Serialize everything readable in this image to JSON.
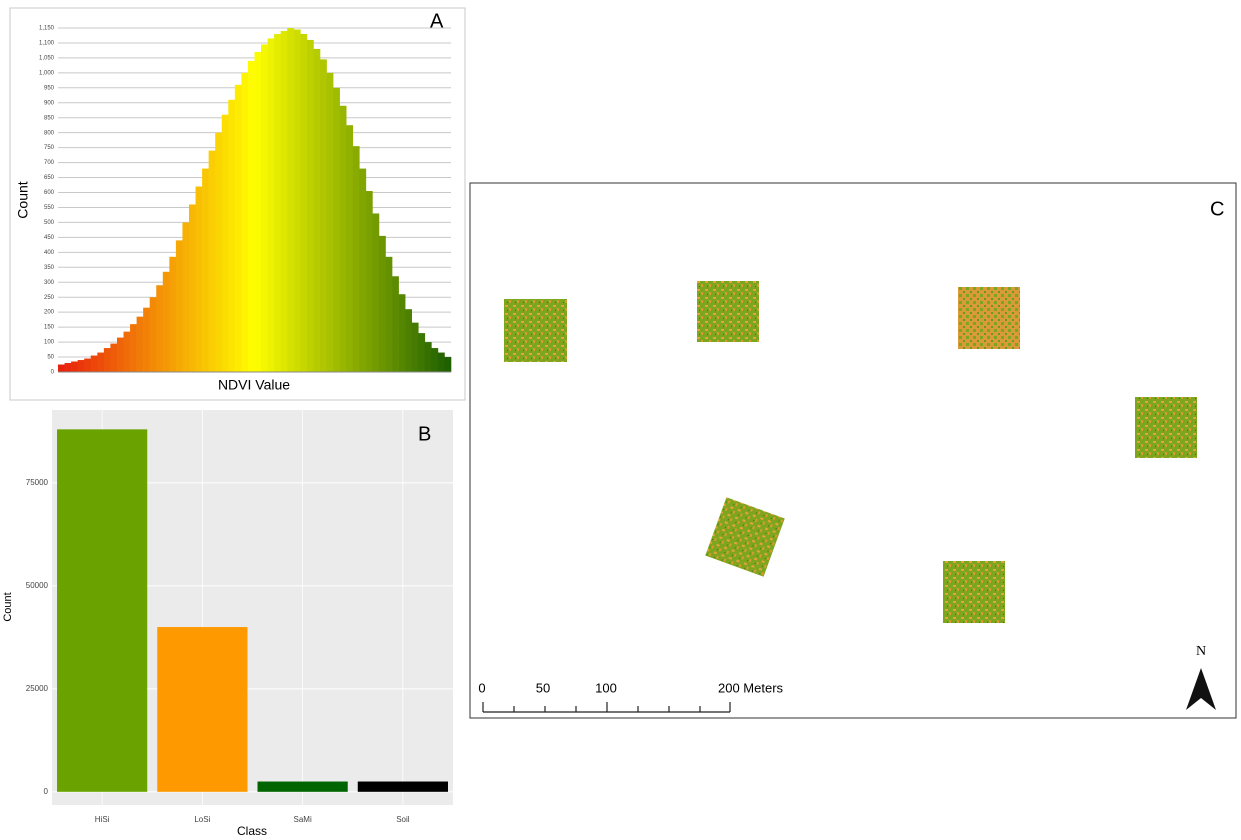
{
  "chart_data": [
    {
      "type": "histogram",
      "panel_label": "A",
      "x_label": "NDVI Value",
      "y_label": "Count",
      "values": [
        25,
        30,
        35,
        40,
        45,
        55,
        65,
        80,
        95,
        115,
        135,
        160,
        185,
        215,
        250,
        290,
        335,
        385,
        440,
        500,
        560,
        620,
        680,
        740,
        800,
        860,
        910,
        960,
        1000,
        1040,
        1070,
        1095,
        1115,
        1130,
        1140,
        1150,
        1145,
        1130,
        1110,
        1080,
        1045,
        1000,
        950,
        890,
        825,
        755,
        680,
        605,
        530,
        455,
        385,
        320,
        260,
        210,
        165,
        130,
        100,
        80,
        65,
        50
      ],
      "color_stops": [
        "#e8200c",
        "#ffff00",
        "#1f6000"
      ],
      "ylim": [
        0,
        1170
      ],
      "yticks": [
        0,
        50,
        100,
        150,
        200,
        250,
        300,
        350,
        400,
        450,
        500,
        550,
        600,
        650,
        700,
        750,
        800,
        850,
        900,
        950,
        {
          "value": 1000,
          "label": "1,000"
        },
        {
          "value": 1050,
          "label": "1,050"
        },
        {
          "value": 1100,
          "label": "1,100"
        },
        {
          "value": 1150,
          "label": "1,150"
        }
      ],
      "grid": true
    },
    {
      "type": "bar",
      "panel_label": "B",
      "x_label": "Class",
      "y_label": "Count",
      "categories": [
        "HiSi",
        "LoSi",
        "SaMi",
        "Soil"
      ],
      "values": [
        88000,
        40000,
        2500,
        2500
      ],
      "colors": [
        "#6aa300",
        "#ff9900",
        "#006400",
        "#000000"
      ],
      "ylim": [
        -3200,
        92700
      ],
      "yticks": [
        0,
        25000,
        50000,
        75000
      ],
      "grid": true
    }
  ],
  "map": {
    "panel_label": "C",
    "scale_labels": [
      "0",
      "50",
      "100",
      "200 Meters"
    ],
    "north": "N"
  }
}
